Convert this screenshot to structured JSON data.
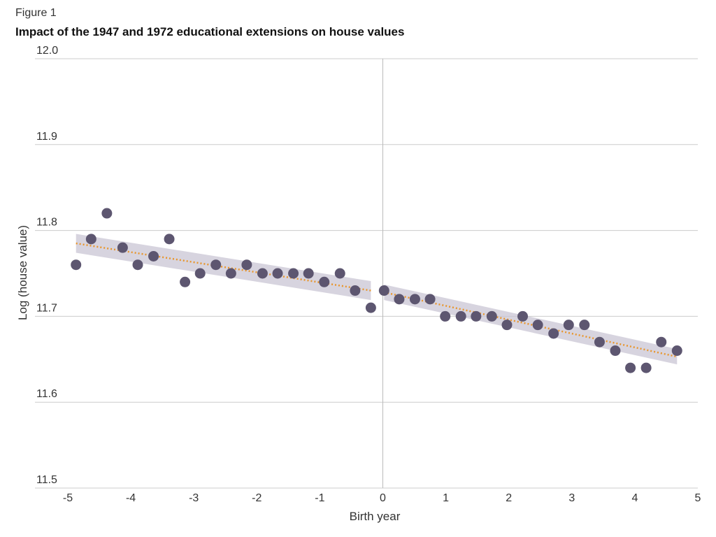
{
  "figure_label": "Figure 1",
  "chart_data": {
    "type": "scatter",
    "title": "Impact of the 1947 and 1972 educational extensions on house values",
    "xlabel": "Birth year",
    "ylabel": "Log (house value)",
    "xlim": [
      -5,
      5
    ],
    "ylim": [
      11.5,
      12.0
    ],
    "x_ticks": [
      -5,
      -4,
      -3,
      -2,
      -1,
      0,
      1,
      2,
      3,
      4,
      5
    ],
    "y_ticks": [
      "11.5",
      "11.6",
      "11.7",
      "11.8",
      "11.9",
      "12.0"
    ],
    "grid": "horizontal",
    "vline_at_x": 0,
    "colors": {
      "points": "#5d5670",
      "fit": "#e8962e",
      "band": "#c9c6d4",
      "grid": "#cccccc"
    },
    "points": [
      [
        -4.87,
        11.76
      ],
      [
        -4.63,
        11.79
      ],
      [
        -4.38,
        11.82
      ],
      [
        -4.13,
        11.78
      ],
      [
        -3.89,
        11.76
      ],
      [
        -3.64,
        11.77
      ],
      [
        -3.39,
        11.79
      ],
      [
        -3.14,
        11.74
      ],
      [
        -2.9,
        11.75
      ],
      [
        -2.65,
        11.76
      ],
      [
        -2.41,
        11.75
      ],
      [
        -2.16,
        11.76
      ],
      [
        -1.91,
        11.75
      ],
      [
        -1.67,
        11.75
      ],
      [
        -1.42,
        11.75
      ],
      [
        -1.18,
        11.75
      ],
      [
        -0.93,
        11.74
      ],
      [
        -0.68,
        11.75
      ],
      [
        -0.44,
        11.73
      ],
      [
        -0.19,
        11.71
      ],
      [
        0.02,
        11.73
      ],
      [
        0.26,
        11.72
      ],
      [
        0.51,
        11.72
      ],
      [
        0.75,
        11.72
      ],
      [
        0.99,
        11.7
      ],
      [
        1.24,
        11.7
      ],
      [
        1.48,
        11.7
      ],
      [
        1.73,
        11.7
      ],
      [
        1.97,
        11.69
      ],
      [
        2.22,
        11.7
      ],
      [
        2.46,
        11.69
      ],
      [
        2.71,
        11.68
      ],
      [
        2.95,
        11.69
      ],
      [
        3.2,
        11.69
      ],
      [
        3.44,
        11.67
      ],
      [
        3.69,
        11.66
      ],
      [
        3.93,
        11.64
      ],
      [
        4.18,
        11.64
      ],
      [
        4.42,
        11.67
      ],
      [
        4.67,
        11.66
      ]
    ],
    "fits": [
      {
        "x": [
          -4.87,
          -0.19
        ],
        "y": [
          11.785,
          11.73
        ],
        "band_halfwidth": 0.011
      },
      {
        "x": [
          0.02,
          4.67
        ],
        "y": [
          11.728,
          11.653
        ],
        "band_halfwidth": 0.009
      }
    ]
  }
}
